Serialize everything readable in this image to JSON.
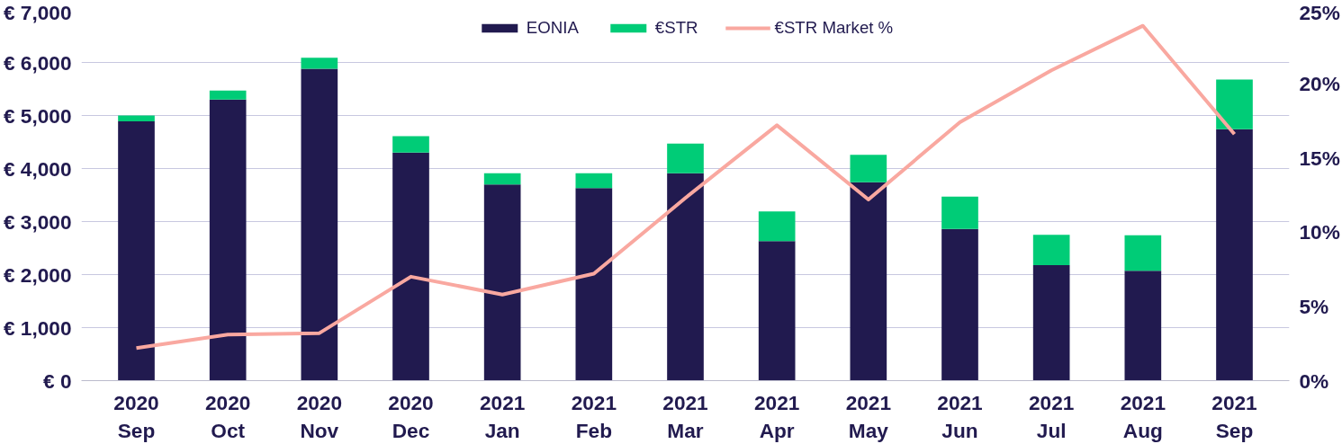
{
  "chart_data": {
    "type": "bar",
    "stacked": true,
    "categories": [
      "2020\nSep",
      "2020\nOct",
      "2020\nNov",
      "2020\nDec",
      "2021\nJan",
      "2021\nFeb",
      "2021\nMar",
      "2021\nApr",
      "2021\nMay",
      "2021\nJun",
      "2021\nJul",
      "2021\nAug",
      "2021\nSep"
    ],
    "series": [
      {
        "name": "EONIA",
        "color": "#211a4f",
        "values": [
          4890,
          5300,
          5880,
          4300,
          3700,
          3630,
          3910,
          2630,
          3740,
          2860,
          2180,
          2070,
          4740
        ]
      },
      {
        "name": "€STR",
        "color": "#00cc77",
        "values": [
          110,
          170,
          210,
          310,
          210,
          280,
          560,
          560,
          520,
          610,
          570,
          670,
          940
        ]
      },
      {
        "name": "€STR Market %",
        "type": "line",
        "axis": "y2",
        "color": "#f9a8a0",
        "values": [
          2.2,
          3.1,
          3.2,
          7.0,
          5.8,
          7.2,
          12.3,
          17.2,
          12.2,
          17.4,
          20.9,
          23.9,
          16.6
        ]
      }
    ],
    "ylim": [
      0,
      7000
    ],
    "yticks": [
      {
        "value": 0,
        "label": "€ 0"
      },
      {
        "value": 1000,
        "label": "€ 1,000"
      },
      {
        "value": 2000,
        "label": "€ 2,000"
      },
      {
        "value": 3000,
        "label": "€ 3,000"
      },
      {
        "value": 4000,
        "label": "€ 4,000"
      },
      {
        "value": 5000,
        "label": "€ 5,000"
      },
      {
        "value": 6000,
        "label": "€ 6,000"
      },
      {
        "value": 7000,
        "label": "€ 7,000"
      }
    ],
    "y2lim": [
      0,
      25
    ],
    "y2ticks": [
      {
        "value": 0,
        "label": "0%"
      },
      {
        "value": 5,
        "label": "5%"
      },
      {
        "value": 10,
        "label": "10%"
      },
      {
        "value": 15,
        "label": "15%"
      },
      {
        "value": 20,
        "label": "20%"
      },
      {
        "value": 25,
        "label": "25%"
      }
    ],
    "grid": "y",
    "legend": "top",
    "line_style": "solid",
    "marker": "none"
  }
}
